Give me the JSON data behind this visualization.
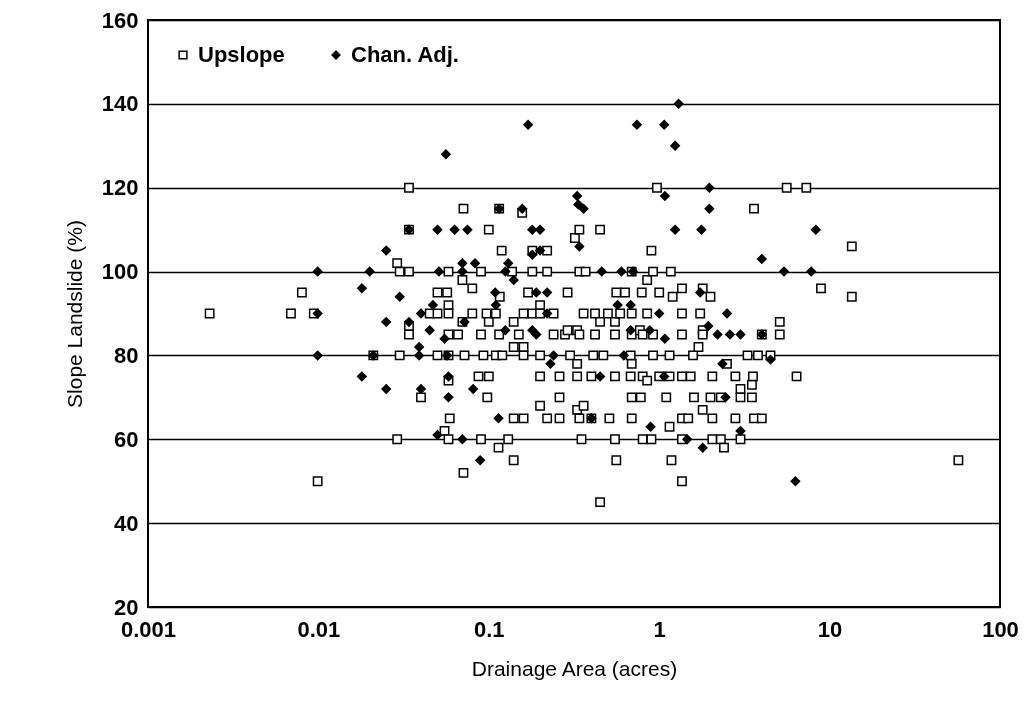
{
  "chart_data": {
    "type": "scatter",
    "xlabel": "Drainage Area (acres)",
    "ylabel": "Slope Landslide (%)",
    "log": "x",
    "grid": "y",
    "legend": "top left",
    "xlim": [
      0.001,
      100
    ],
    "xticks": [
      0.001,
      0.01,
      0.1,
      1,
      10,
      100
    ],
    "ylim": [
      20,
      160
    ],
    "yticks": [
      20,
      40,
      60,
      80,
      100,
      120,
      140,
      160
    ],
    "series": [
      {
        "name": "Upslope",
        "color": "#000000",
        "marker": "square",
        "x": [
          0.0023,
          0.0069,
          0.008,
          0.0094,
          0.0099,
          0.021,
          0.029,
          0.029,
          0.03,
          0.03,
          0.034,
          0.034,
          0.034,
          0.034,
          0.034,
          0.04,
          0.045,
          0.05,
          0.05,
          0.05,
          0.055,
          0.057,
          0.058,
          0.058,
          0.058,
          0.058,
          0.058,
          0.058,
          0.058,
          0.059,
          0.066,
          0.07,
          0.07,
          0.071,
          0.071,
          0.072,
          0.08,
          0.08,
          0.087,
          0.09,
          0.09,
          0.09,
          0.093,
          0.097,
          0.098,
          0.1,
          0.1,
          0.1,
          0.11,
          0.11,
          0.114,
          0.115,
          0.115,
          0.116,
          0.119,
          0.12,
          0.13,
          0.137,
          0.14,
          0.14,
          0.14,
          0.14,
          0.15,
          0.157,
          0.16,
          0.16,
          0.16,
          0.16,
          0.17,
          0.18,
          0.18,
          0.18,
          0.2,
          0.2,
          0.2,
          0.2,
          0.2,
          0.22,
          0.22,
          0.22,
          0.24,
          0.24,
          0.26,
          0.26,
          0.26,
          0.28,
          0.29,
          0.29,
          0.3,
          0.32,
          0.33,
          0.33,
          0.33,
          0.33,
          0.34,
          0.34,
          0.34,
          0.34,
          0.35,
          0.36,
          0.36,
          0.37,
          0.4,
          0.4,
          0.41,
          0.42,
          0.42,
          0.45,
          0.45,
          0.45,
          0.47,
          0.5,
          0.51,
          0.55,
          0.55,
          0.55,
          0.55,
          0.56,
          0.56,
          0.59,
          0.63,
          0.68,
          0.68,
          0.69,
          0.69,
          0.69,
          0.69,
          0.69,
          0.69,
          0.77,
          0.78,
          0.79,
          0.8,
          0.8,
          0.8,
          0.85,
          0.85,
          0.85,
          0.9,
          0.9,
          0.92,
          0.92,
          0.92,
          0.97,
          1.0,
          1.0,
          1.1,
          1.15,
          1.15,
          1.15,
          1.17,
          1.18,
          1.2,
          1.36,
          1.36,
          1.36,
          1.36,
          1.36,
          1.36,
          1.36,
          1.48,
          1.53,
          1.58,
          1.6,
          1.7,
          1.74,
          1.8,
          1.8,
          1.8,
          1.8,
          2.0,
          2.0,
          2.05,
          2.05,
          2.05,
          2.3,
          2.3,
          2.4,
          2.5,
          2.8,
          2.8,
          3.0,
          3.0,
          3.0,
          3.3,
          3.5,
          3.5,
          3.55,
          3.6,
          3.6,
          3.8,
          4.0,
          4.0,
          4.5,
          5.1,
          5.1,
          5.6,
          6.4,
          7.3,
          8.9,
          13.5,
          13.5,
          57
        ],
        "values": [
          90,
          90,
          95,
          90,
          50,
          80,
          102,
          60,
          100,
          80,
          120,
          110,
          100,
          87,
          85,
          70,
          90,
          90,
          95,
          80,
          62,
          95,
          100,
          92,
          90,
          85,
          80,
          74,
          60,
          65,
          85,
          98,
          88,
          115,
          52,
          80,
          96,
          90,
          75,
          100,
          85,
          60,
          80,
          90,
          70,
          110,
          88,
          75,
          90,
          80,
          58,
          115,
          85,
          94,
          105,
          80,
          60,
          100,
          88,
          82,
          65,
          55,
          85,
          114,
          90,
          82,
          80,
          65,
          95,
          105,
          100,
          90,
          92,
          90,
          80,
          75,
          68,
          105,
          100,
          65,
          90,
          85,
          75,
          70,
          65,
          85,
          95,
          86,
          80,
          108,
          86,
          78,
          75,
          67,
          110,
          100,
          85,
          65,
          60,
          90,
          68,
          100,
          75,
          65,
          80,
          90,
          85,
          110,
          88,
          45,
          80,
          90,
          65,
          88,
          85,
          75,
          60,
          95,
          55,
          90,
          95,
          80,
          75,
          100,
          90,
          85,
          78,
          70,
          65,
          86,
          70,
          95,
          85,
          75,
          60,
          98,
          90,
          74,
          105,
          60,
          100,
          85,
          80,
          120,
          95,
          75,
          70,
          80,
          75,
          63,
          100,
          55,
          94,
          96,
          90,
          85,
          75,
          65,
          60,
          50,
          65,
          75,
          80,
          70,
          82,
          90,
          96,
          86,
          85,
          67,
          94,
          70,
          75,
          65,
          60,
          70,
          60,
          58,
          78,
          75,
          65,
          72,
          70,
          60,
          80,
          73,
          70,
          75,
          115,
          65,
          80,
          85,
          65,
          80,
          88,
          85,
          120,
          75,
          120,
          96,
          106,
          94,
          55
        ]
      },
      {
        "name": "Chan. Adj.",
        "color": "#000000",
        "marker": "diamond",
        "x": [
          0.0099,
          0.0099,
          0.0099,
          0.018,
          0.018,
          0.02,
          0.021,
          0.025,
          0.025,
          0.025,
          0.03,
          0.034,
          0.034,
          0.039,
          0.039,
          0.04,
          0.04,
          0.045,
          0.047,
          0.05,
          0.05,
          0.051,
          0.055,
          0.056,
          0.057,
          0.058,
          0.058,
          0.063,
          0.07,
          0.07,
          0.07,
          0.072,
          0.075,
          0.081,
          0.083,
          0.089,
          0.109,
          0.11,
          0.114,
          0.115,
          0.125,
          0.125,
          0.13,
          0.14,
          0.157,
          0.17,
          0.18,
          0.18,
          0.18,
          0.19,
          0.19,
          0.2,
          0.2,
          0.22,
          0.22,
          0.23,
          0.24,
          0.33,
          0.335,
          0.34,
          0.36,
          0.4,
          0.45,
          0.46,
          0.57,
          0.6,
          0.62,
          0.68,
          0.68,
          0.7,
          0.74,
          0.88,
          0.89,
          1.0,
          1.07,
          1.07,
          1.08,
          1.08,
          1.24,
          1.24,
          1.3,
          1.46,
          1.74,
          1.77,
          1.8,
          1.94,
          1.97,
          1.97,
          2.2,
          2.35,
          2.45,
          2.5,
          2.6,
          3.0,
          3.0,
          4.0,
          4.0,
          4.5,
          5.4,
          6.3,
          7.8,
          8.3
        ],
        "values": [
          100,
          90,
          80,
          96,
          75,
          100,
          80,
          105,
          88,
          72,
          94,
          110,
          88,
          82,
          80,
          90,
          72,
          86,
          92,
          110,
          61,
          100,
          84,
          128,
          80,
          75,
          70,
          110,
          102,
          100,
          60,
          88,
          110,
          72,
          102,
          55,
          95,
          92,
          65,
          115,
          100,
          86,
          102,
          98,
          115,
          135,
          110,
          104,
          86,
          95,
          85,
          110,
          105,
          95,
          90,
          78,
          80,
          118,
          116,
          106,
          115,
          65,
          75,
          100,
          92,
          100,
          80,
          92,
          86,
          100,
          135,
          86,
          63,
          90,
          135,
          75,
          118,
          84,
          130,
          110,
          140,
          60,
          95,
          110,
          58,
          87,
          120,
          115,
          85,
          78,
          70,
          90,
          85,
          85,
          62,
          103,
          85,
          79,
          100,
          50,
          100,
          110
        ]
      }
    ]
  }
}
